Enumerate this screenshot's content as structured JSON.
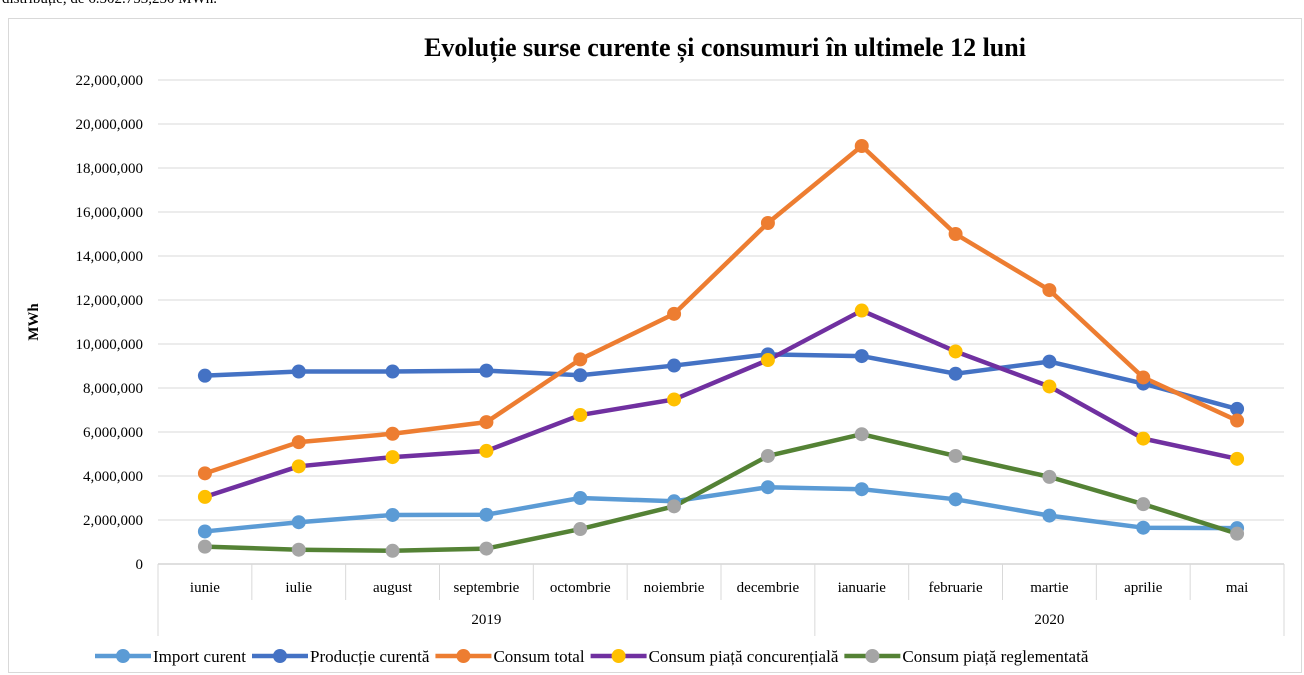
{
  "page": {
    "top_text": "distribuție, de 6.502.753,250 MWh."
  },
  "chart_data": {
    "type": "line",
    "title": "Evoluție surse curente și consumuri  în ultimele 12 luni",
    "xlabel": "",
    "ylabel": "MWh",
    "ylim": [
      0,
      22000000
    ],
    "y_ticks": [
      "0",
      "2,000,000",
      "4,000,000",
      "6,000,000",
      "8,000,000",
      "10,000,000",
      "12,000,000",
      "14,000,000",
      "16,000,000",
      "18,000,000",
      "20,000,000",
      "22,000,000"
    ],
    "y_tick_values": [
      0,
      2000000,
      4000000,
      6000000,
      8000000,
      10000000,
      12000000,
      14000000,
      16000000,
      18000000,
      20000000,
      22000000
    ],
    "categories": [
      "iunie",
      "iulie",
      "august",
      "septembrie",
      "octombrie",
      "noiembrie",
      "decembrie",
      "ianuarie",
      "februarie",
      "martie",
      "aprilie",
      "mai"
    ],
    "groups": [
      {
        "label": "2019",
        "span": 7
      },
      {
        "label": "2020",
        "span": 5
      }
    ],
    "grid": true,
    "legend_position": "bottom",
    "series": [
      {
        "name": "Import curent",
        "color": "#5b9bd5",
        "marker_color": "#5b9bd5",
        "values": [
          1480000,
          1900000,
          2230000,
          2240000,
          3000000,
          2850000,
          3490000,
          3400000,
          2940000,
          2200000,
          1650000,
          1630000
        ]
      },
      {
        "name": "Producție curentă",
        "color": "#4472c4",
        "marker_color": "#4472c4",
        "values": [
          8560000,
          8750000,
          8750000,
          8790000,
          8580000,
          9020000,
          9530000,
          9450000,
          8650000,
          9200000,
          8200000,
          7050000
        ]
      },
      {
        "name": "Consum total",
        "color": "#ed7d31",
        "marker_color": "#ed7d31",
        "values": [
          4120000,
          5540000,
          5920000,
          6450000,
          9300000,
          11370000,
          15500000,
          19000000,
          15000000,
          12450000,
          8480000,
          6520000
        ]
      },
      {
        "name": "Consum piață concurențială",
        "color": "#7030a0",
        "marker_color": "#ffc000",
        "values": [
          3050000,
          4440000,
          4860000,
          5140000,
          6770000,
          7480000,
          9270000,
          11520000,
          9660000,
          8070000,
          5700000,
          4780000
        ]
      },
      {
        "name": "Consum piață reglementată",
        "color": "#548235",
        "marker_color": "#a5a5a5",
        "values": [
          790000,
          650000,
          600000,
          700000,
          1590000,
          2620000,
          4910000,
          5900000,
          4910000,
          3960000,
          2720000,
          1380000
        ]
      }
    ]
  }
}
